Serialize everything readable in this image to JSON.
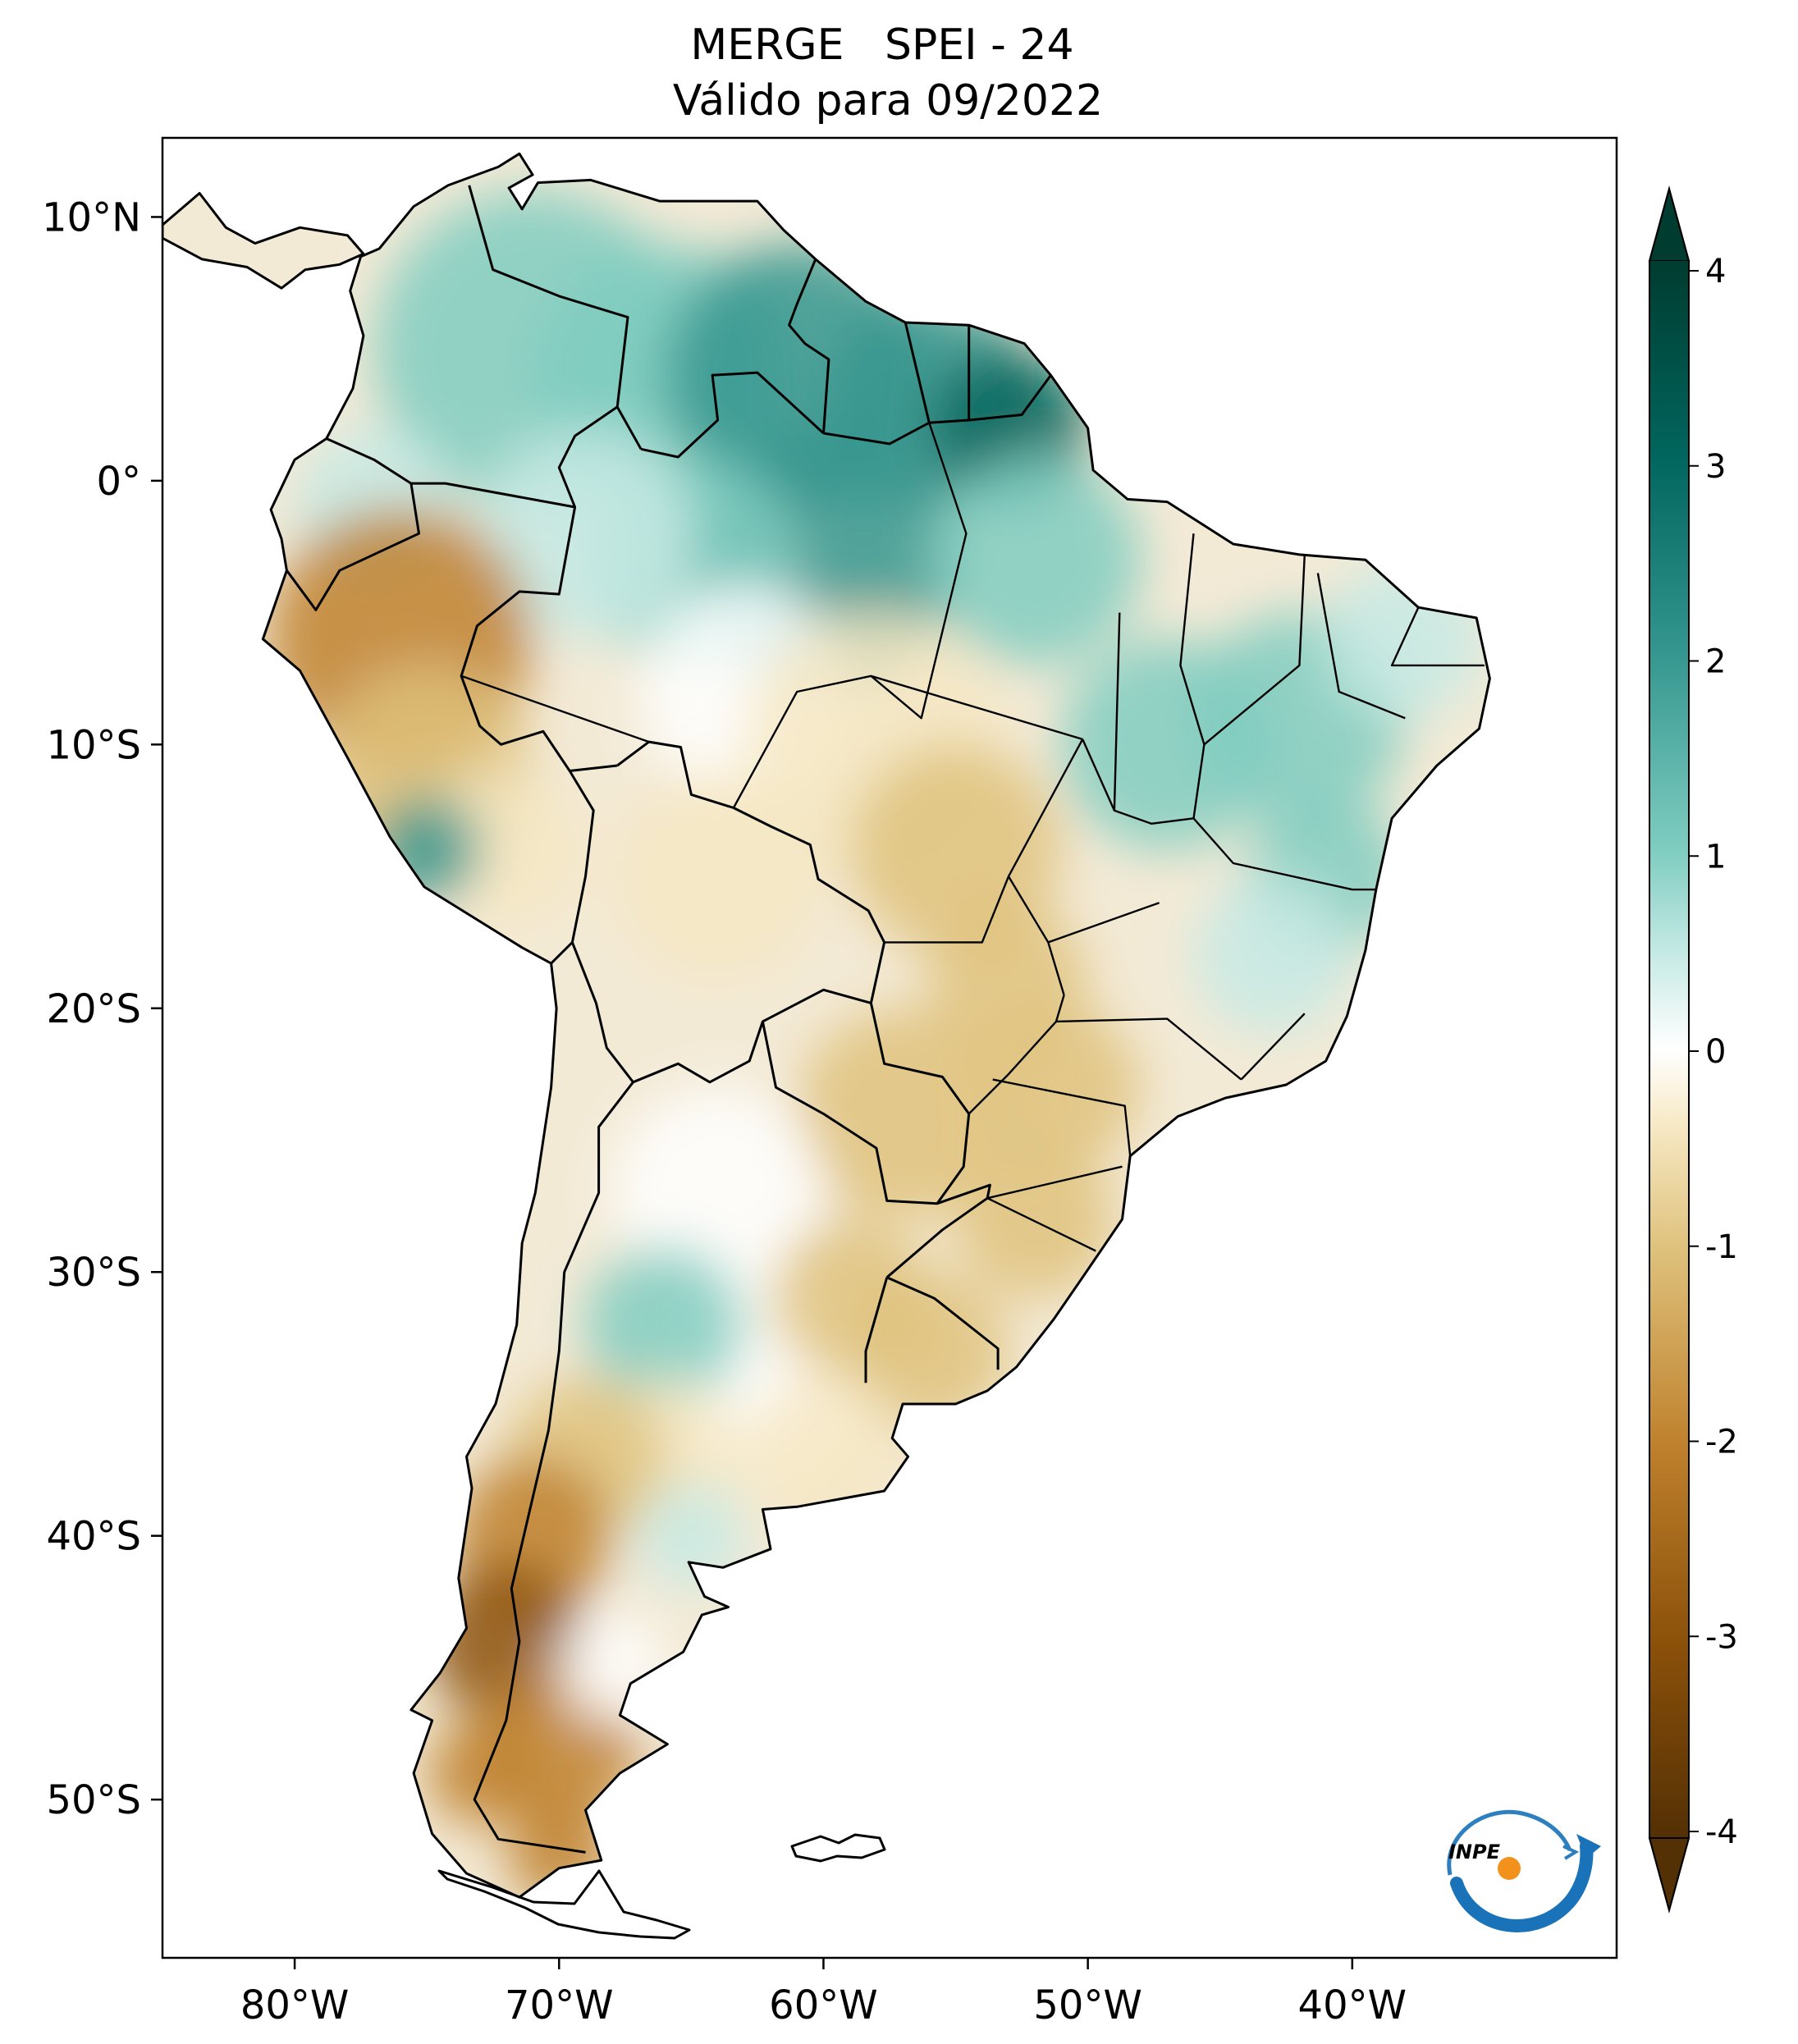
{
  "title": {
    "line1": "MERGE   SPEI - 24",
    "line2": "Válido para 09/2022"
  },
  "axes": {
    "lat_labels": [
      "10°N",
      "0°",
      "10°S",
      "20°S",
      "30°S",
      "40°S",
      "50°S"
    ],
    "lon_labels": [
      "80°W",
      "70°W",
      "60°W",
      "50°W",
      "40°W"
    ]
  },
  "colorbar": {
    "ticks": [
      "4",
      "3",
      "2",
      "1",
      "0",
      "-1",
      "-2",
      "-3",
      "-4"
    ],
    "min": -4,
    "max": 4,
    "extend": "both",
    "colors": {
      "dry_extreme": "#543005",
      "dry_strong": "#8c510a",
      "dry_moderate": "#bf812d",
      "dry_mild": "#dfc27d",
      "dry_slight": "#f6e8c3",
      "neutral": "#ffffff",
      "wet_slight": "#c7eae5",
      "wet_mild": "#80cdc1",
      "wet_moderate": "#35978f",
      "wet_strong": "#01665e",
      "wet_extreme": "#003c30"
    }
  },
  "logo": {
    "text": "INPE",
    "icon": "inpe-logo-icon"
  }
}
